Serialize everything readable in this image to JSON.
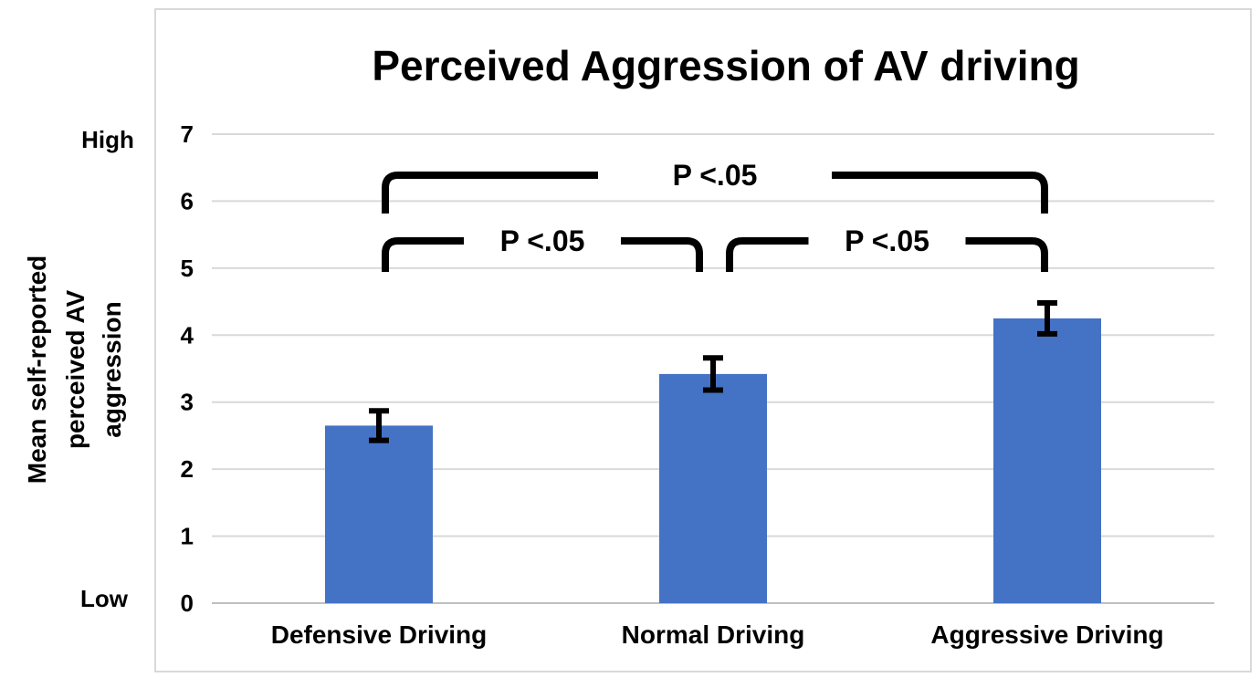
{
  "chart_data": {
    "type": "bar",
    "title": "Perceived Aggression of AV driving",
    "ylabel_lines": [
      "Mean self-reported",
      "perceived AV",
      "aggression"
    ],
    "categories": [
      "Defensive Driving",
      "Normal Driving",
      "Aggressive Driving"
    ],
    "values": [
      2.65,
      3.42,
      4.25
    ],
    "error": [
      0.22,
      0.24,
      0.23
    ],
    "ylim": [
      0,
      7
    ],
    "yticks": [
      "0",
      "1",
      "2",
      "3",
      "4",
      "5",
      "6",
      "7"
    ],
    "y_anchor_labels": {
      "low": "Low",
      "high": "High"
    },
    "grid": true,
    "bar_color": "#4472C4",
    "significance": [
      {
        "from": 0,
        "to": 1,
        "label": "P <.05"
      },
      {
        "from": 1,
        "to": 2,
        "label": "P <.05"
      },
      {
        "from": 0,
        "to": 2,
        "label": "P <.05"
      }
    ]
  }
}
